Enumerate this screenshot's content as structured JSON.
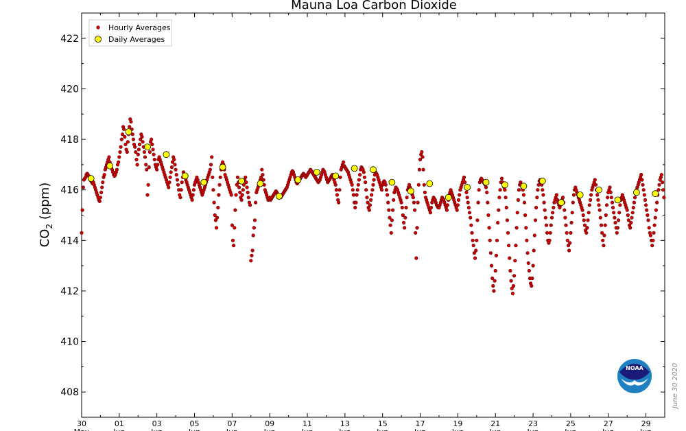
{
  "colors": {
    "hourly_fill": "#cc0000",
    "hourly_edge": "#550000",
    "daily_fill": "#ffff00",
    "daily_edge": "#000000",
    "noaa_blue": "#1e7fc1",
    "noaa_dark": "#1a1a7a"
  },
  "noaa_logo_text": "NOAA",
  "date_stamp": "June 30 2020",
  "chart_data": {
    "type": "scatter",
    "title": "Mauna Loa Carbon Dioxide",
    "ylabel": "CO",
    "ylabel_sub": "2",
    "ylabel_unit": " (ppm)",
    "ylim": [
      407,
      423
    ],
    "xlim": [
      0,
      31
    ],
    "y_ticks": [
      408,
      410,
      412,
      414,
      416,
      418,
      420,
      422
    ],
    "x_ticks": [
      {
        "day": 0,
        "label": "30",
        "month": "May"
      },
      {
        "day": 2,
        "label": "01",
        "month": "Jun"
      },
      {
        "day": 4,
        "label": "03",
        "month": "Jun"
      },
      {
        "day": 6,
        "label": "05",
        "month": "Jun"
      },
      {
        "day": 8,
        "label": "07",
        "month": "Jun"
      },
      {
        "day": 10,
        "label": "09",
        "month": "Jun"
      },
      {
        "day": 12,
        "label": "11",
        "month": "Jun"
      },
      {
        "day": 14,
        "label": "13",
        "month": "Jun"
      },
      {
        "day": 16,
        "label": "15",
        "month": "Jun"
      },
      {
        "day": 18,
        "label": "17",
        "month": "Jun"
      },
      {
        "day": 20,
        "label": "19",
        "month": "Jun"
      },
      {
        "day": 22,
        "label": "21",
        "month": "Jun"
      },
      {
        "day": 24,
        "label": "23",
        "month": "Jun"
      },
      {
        "day": 26,
        "label": "25",
        "month": "Jun"
      },
      {
        "day": 28,
        "label": "27",
        "month": "Jun"
      },
      {
        "day": 30,
        "label": "29",
        "month": "Jun"
      }
    ],
    "legend": {
      "position": "top-left",
      "entries": [
        "Hourly Averages",
        "Daily Averages"
      ]
    },
    "series": [
      {
        "name": "Daily Averages",
        "x_dates": [
          "May 30",
          "May 31",
          "Jun 01",
          "Jun 02",
          "Jun 03",
          "Jun 04",
          "Jun 05",
          "Jun 06",
          "Jun 07",
          "Jun 08",
          "Jun 09",
          "Jun 10",
          "Jun 11",
          "Jun 12",
          "Jun 13",
          "Jun 14",
          "Jun 15",
          "Jun 16",
          "Jun 17",
          "Jun 18",
          "Jun 19",
          "Jun 20",
          "Jun 21",
          "Jun 22",
          "Jun 23",
          "Jun 24",
          "Jun 25",
          "Jun 26",
          "Jun 27",
          "Jun 28",
          "Jun 29"
        ],
        "x": [
          0.5,
          1.5,
          2.5,
          3.5,
          4.5,
          5.5,
          6.5,
          7.5,
          8.5,
          9.5,
          10.5,
          11.5,
          12.5,
          13.5,
          14.5,
          15.5,
          16.5,
          17.5,
          18.5,
          19.5,
          20.5,
          21.5,
          22.5,
          23.5,
          24.5,
          25.5,
          26.5,
          27.5,
          28.5,
          29.5,
          30.5
        ],
        "values": [
          416.45,
          416.95,
          418.3,
          417.7,
          417.4,
          416.55,
          416.3,
          416.9,
          416.35,
          416.25,
          415.75,
          416.4,
          416.7,
          416.55,
          416.85,
          416.8,
          416.3,
          415.95,
          416.25,
          415.7,
          416.1,
          416.3,
          416.2,
          416.15,
          416.35,
          415.5,
          415.8,
          416.0,
          415.6,
          415.9,
          415.85
        ]
      },
      {
        "name": "Hourly Averages",
        "x_dates": [
          "May 30",
          "May 31",
          "Jun 01",
          "Jun 02",
          "Jun 03",
          "Jun 04",
          "Jun 05",
          "Jun 06",
          "Jun 07",
          "Jun 08",
          "Jun 09",
          "Jun 10",
          "Jun 11",
          "Jun 12",
          "Jun 13",
          "Jun 14",
          "Jun 15",
          "Jun 16",
          "Jun 17",
          "Jun 18",
          "Jun 19",
          "Jun 20",
          "Jun 21",
          "Jun 22",
          "Jun 23",
          "Jun 24",
          "Jun 25",
          "Jun 26",
          "Jun 27",
          "Jun 28",
          "Jun 29"
        ],
        "hourly_values": [
          [
            414.3,
            415.2,
            416.1,
            416.4,
            416.45,
            416.5,
            416.6,
            416.65,
            416.6,
            416.55,
            416.5,
            416.4,
            416.35,
            416.3,
            416.25,
            416.3,
            416.2,
            416.1,
            416.0,
            415.9,
            415.8,
            415.7,
            415.6,
            415.55
          ],
          [
            415.7,
            415.9,
            416.1,
            416.3,
            416.5,
            416.6,
            416.8,
            416.9,
            417.0,
            417.1,
            417.2,
            417.3,
            417.1,
            417.0,
            416.9,
            416.8,
            416.7,
            416.6,
            416.55,
            416.6,
            416.7,
            416.8,
            417.0,
            417.1
          ],
          [
            417.3,
            417.5,
            417.7,
            418.0,
            418.2,
            418.5,
            418.4,
            418.1,
            417.8,
            417.6,
            417.5,
            417.9,
            418.2,
            418.5,
            418.8,
            418.7,
            418.4,
            418.2,
            418.0,
            417.8,
            417.7,
            417.5,
            417.2,
            417.0
          ],
          [
            417.4,
            417.6,
            417.8,
            418.0,
            418.2,
            418.1,
            417.9,
            417.7,
            417.5,
            417.3,
            417.0,
            416.8,
            415.8,
            416.2,
            416.9,
            417.5,
            417.9,
            418.0,
            417.8,
            417.6,
            417.4,
            417.2,
            417.0,
            416.9
          ],
          [
            416.8,
            417.0,
            417.2,
            417.3,
            417.2,
            417.1,
            417.0,
            416.9,
            416.8,
            416.7,
            416.6,
            416.5,
            416.4,
            416.3,
            416.2,
            416.1,
            416.3,
            416.5,
            416.7,
            416.9,
            417.1,
            417.3,
            417.2,
            417.0
          ],
          [
            416.8,
            416.6,
            416.4,
            416.2,
            416.0,
            415.8,
            415.7,
            416.0,
            416.3,
            416.5,
            416.7,
            416.6,
            416.5,
            416.4,
            416.3,
            416.2,
            416.1,
            416.0,
            415.9,
            415.8,
            415.7,
            415.6,
            415.8,
            416.0
          ],
          [
            416.2,
            416.3,
            416.4,
            416.5,
            416.4,
            416.3,
            416.2,
            416.1,
            416.0,
            415.9,
            415.8,
            415.9,
            416.0,
            416.1,
            416.2,
            416.3,
            416.4,
            416.5,
            416.6,
            416.7,
            416.8,
            417.0,
            417.3,
            416.5
          ],
          [
            416.0,
            415.5,
            415.0,
            414.8,
            414.5,
            414.9,
            415.3,
            415.8,
            416.2,
            416.5,
            416.8,
            417.0,
            417.1,
            417.0,
            416.8,
            416.6,
            416.5,
            416.4,
            416.3,
            416.2,
            416.1,
            416.0,
            415.9,
            415.8
          ],
          [
            414.6,
            414.0,
            413.8,
            414.5,
            415.2,
            415.8,
            416.2,
            416.5,
            416.3,
            416.1,
            415.9,
            415.7,
            415.6,
            415.8,
            416.0,
            416.2,
            416.4,
            416.5,
            416.3,
            416.1,
            415.9,
            415.7,
            415.5,
            415.4
          ],
          [
            413.2,
            413.4,
            413.6,
            414.2,
            414.5,
            414.8,
            415.5,
            415.9,
            416.0,
            416.1,
            416.2,
            416.3,
            416.4,
            416.5,
            416.8,
            416.6,
            416.4,
            416.2,
            416.0,
            415.9,
            415.8,
            415.7,
            415.6,
            415.65
          ],
          [
            415.7,
            415.6,
            415.65,
            415.7,
            415.75,
            415.8,
            415.85,
            415.9,
            415.95,
            415.9,
            415.85,
            415.8,
            415.75,
            415.7,
            415.7,
            415.75,
            415.8,
            415.85,
            415.9,
            415.95,
            416.0,
            416.05,
            416.1,
            416.2
          ],
          [
            416.3,
            416.4,
            416.5,
            416.6,
            416.7,
            416.75,
            416.7,
            416.6,
            416.5,
            416.4,
            416.3,
            416.25,
            416.3,
            416.35,
            416.4,
            416.45,
            416.5,
            416.55,
            416.6,
            416.65,
            416.6,
            416.55,
            416.5,
            416.55
          ],
          [
            416.6,
            416.65,
            416.7,
            416.75,
            416.8,
            416.75,
            416.7,
            416.65,
            416.6,
            416.55,
            416.5,
            416.45,
            416.4,
            416.35,
            416.3,
            416.35,
            416.4,
            416.5,
            416.6,
            416.7,
            416.8,
            416.75,
            416.7,
            416.6
          ],
          [
            416.5,
            416.4,
            416.3,
            416.35,
            416.4,
            416.45,
            416.5,
            416.55,
            416.6,
            416.5,
            416.4,
            416.3,
            416.2,
            416.0,
            415.8,
            415.6,
            415.5,
            416.0,
            416.5,
            416.8,
            416.9,
            417.0,
            417.1,
            416.95
          ],
          [
            416.9,
            416.85,
            416.8,
            416.75,
            416.7,
            416.6,
            416.5,
            416.4,
            416.3,
            416.2,
            416.0,
            415.8,
            415.5,
            415.3,
            415.5,
            415.8,
            416.0,
            416.2,
            416.4,
            416.6,
            416.8,
            416.9,
            416.85,
            416.8
          ],
          [
            416.7,
            416.5,
            416.3,
            416.0,
            415.7,
            415.5,
            415.3,
            415.2,
            415.4,
            415.6,
            415.8,
            416.0,
            416.2,
            416.4,
            416.6,
            416.7,
            416.65,
            416.6,
            416.5,
            416.4,
            416.3,
            416.2,
            416.1,
            416.0
          ],
          [
            416.2,
            416.3,
            416.35,
            416.3,
            416.2,
            416.0,
            415.8,
            415.5,
            415.2,
            414.9,
            414.6,
            414.3,
            414.8,
            415.2,
            415.6,
            415.9,
            416.0,
            416.1,
            416.05,
            416.0,
            415.9,
            415.8,
            415.7,
            415.6
          ],
          [
            415.5,
            415.3,
            415.0,
            414.7,
            414.5,
            414.9,
            415.3,
            415.7,
            416.0,
            416.1,
            416.2,
            416.1,
            416.0,
            415.9,
            415.8,
            415.7,
            415.5,
            415.2,
            414.3,
            413.3,
            414.5,
            415.5,
            416.2,
            416.8
          ],
          [
            417.2,
            417.4,
            417.5,
            417.3,
            416.8,
            416.2,
            415.9,
            415.7,
            415.6,
            415.5,
            415.4,
            415.3,
            415.2,
            415.1,
            415.3,
            415.5,
            415.6,
            415.7,
            415.65,
            415.6,
            415.5,
            415.4,
            415.35,
            415.3
          ],
          [
            415.3,
            415.4,
            415.5,
            415.6,
            415.7,
            415.65,
            415.6,
            415.5,
            415.4,
            415.3,
            415.2,
            415.4,
            415.6,
            415.8,
            415.9,
            416.0,
            415.9,
            415.8,
            415.7,
            415.6,
            415.5,
            415.4,
            415.3,
            415.2
          ],
          [
            415.4,
            415.6,
            415.8,
            416.0,
            416.1,
            416.2,
            416.3,
            416.4,
            416.5,
            416.3,
            416.1,
            415.9,
            415.7,
            415.5,
            415.3,
            415.1,
            414.9,
            414.6,
            414.3,
            414.0,
            413.8,
            413.5,
            413.3,
            413.6
          ],
          [
            414.0,
            414.8,
            415.5,
            416.0,
            416.3,
            416.4,
            416.45,
            416.4,
            416.35,
            416.3,
            416.25,
            416.2,
            416.1,
            415.9,
            415.5,
            415.0,
            414.5,
            414.0,
            413.5,
            413.0,
            412.5,
            412.2,
            412.0,
            412.4
          ],
          [
            412.8,
            413.4,
            414.0,
            414.7,
            415.2,
            415.7,
            416.0,
            416.3,
            416.45,
            416.3,
            416.2,
            416.1,
            416.0,
            415.7,
            415.3,
            414.8,
            414.3,
            413.8,
            413.3,
            412.8,
            412.4,
            412.1,
            411.9,
            412.2
          ],
          [
            412.6,
            413.2,
            413.8,
            414.5,
            415.1,
            415.6,
            416.0,
            416.2,
            416.3,
            416.2,
            416.1,
            416.0,
            415.8,
            415.5,
            415.0,
            414.5,
            414.0,
            413.5,
            413.1,
            412.8,
            412.5,
            412.3,
            412.2,
            412.5
          ],
          [
            413.0,
            413.6,
            414.2,
            414.8,
            415.3,
            415.7,
            416.0,
            416.2,
            416.35,
            416.4,
            416.3,
            416.2,
            416.0,
            415.8,
            415.5,
            415.2,
            414.9,
            414.6,
            414.3,
            414.0,
            413.9,
            414.0,
            414.3,
            414.6
          ],
          [
            414.9,
            415.1,
            415.3,
            415.5,
            415.6,
            415.7,
            415.8,
            415.6,
            415.5,
            415.4,
            415.3,
            415.4,
            415.5,
            415.6,
            415.7,
            415.5,
            415.2,
            414.9,
            414.6,
            414.3,
            414.0,
            413.8,
            413.6,
            413.9
          ],
          [
            414.3,
            414.7,
            415.1,
            415.5,
            415.8,
            416.0,
            416.1,
            416.0,
            415.9,
            415.8,
            415.7,
            415.6,
            415.5,
            415.4,
            415.3,
            415.2,
            415.0,
            414.8,
            414.6,
            414.4,
            414.3,
            414.5,
            414.8,
            415.1
          ],
          [
            415.4,
            415.6,
            415.8,
            416.0,
            416.1,
            416.2,
            416.3,
            416.4,
            416.2,
            416.0,
            415.8,
            415.6,
            415.4,
            415.2,
            414.9,
            414.6,
            414.3,
            414.0,
            413.8,
            414.2,
            414.6,
            415.0,
            415.4,
            415.7
          ],
          [
            415.9,
            416.0,
            416.1,
            415.9,
            415.7,
            415.5,
            415.3,
            415.1,
            414.9,
            414.7,
            414.5,
            414.3,
            414.5,
            414.8,
            415.1,
            415.4,
            415.6,
            415.7,
            415.8,
            415.7,
            415.6,
            415.5,
            415.4,
            415.3
          ],
          [
            415.2,
            415.0,
            414.8,
            414.6,
            414.5,
            414.7,
            414.9,
            415.1,
            415.3,
            415.5,
            415.7,
            415.9,
            416.0,
            416.1,
            416.2,
            416.3,
            416.4,
            416.5,
            416.6,
            416.4,
            416.2,
            416.0,
            415.8,
            415.6
          ],
          [
            415.4,
            415.2,
            415.0,
            414.8,
            414.5,
            414.3,
            414.2,
            414.0,
            413.8,
            414.0,
            414.3,
            414.6,
            414.9,
            415.2,
            415.5,
            415.8,
            416.0,
            416.2,
            416.4,
            416.5,
            416.6,
            416.3,
            416.0,
            415.7
          ]
        ]
      }
    ]
  }
}
